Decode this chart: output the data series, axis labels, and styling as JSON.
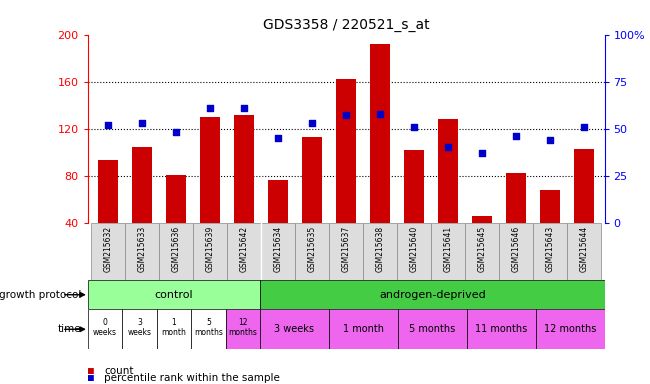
{
  "title": "GDS3358 / 220521_s_at",
  "samples": [
    "GSM215632",
    "GSM215633",
    "GSM215636",
    "GSM215639",
    "GSM215642",
    "GSM215634",
    "GSM215635",
    "GSM215637",
    "GSM215638",
    "GSM215640",
    "GSM215641",
    "GSM215645",
    "GSM215646",
    "GSM215643",
    "GSM215644"
  ],
  "bar_values": [
    93,
    104,
    81,
    130,
    132,
    76,
    113,
    162,
    192,
    102,
    128,
    46,
    82,
    68,
    103
  ],
  "dot_values": [
    52,
    53,
    48,
    61,
    61,
    45,
    53,
    57,
    58,
    51,
    40,
    37,
    46,
    44,
    51
  ],
  "ylim": [
    40,
    200
  ],
  "yticks": [
    40,
    80,
    120,
    160,
    200
  ],
  "y2ticks": [
    0,
    25,
    50,
    75,
    100
  ],
  "bar_color": "#cc0000",
  "dot_color": "#0000cc",
  "bg_color": "#ffffff",
  "control_color": "#99ff99",
  "androgen_color": "#44cc44",
  "time_ctrl_colors": [
    "#ffffff",
    "#ffffff",
    "#ffffff",
    "#ffffff",
    "#ee66ee"
  ],
  "time_and_colors": [
    "#ee66ee",
    "#ee66ee",
    "#ee66ee",
    "#ee66ee",
    "#ee66ee"
  ],
  "time_control": [
    "0\nweeks",
    "3\nweeks",
    "1\nmonth",
    "5\nmonths",
    "12\nmonths"
  ],
  "time_androgen": [
    "3 weeks",
    "1 month",
    "5 months",
    "11 months",
    "12 months"
  ],
  "growth_label": "growth protocol",
  "time_label": "time",
  "legend_count": "count",
  "legend_pct": "percentile rank within the sample",
  "n_control": 5,
  "n_androgen": 10
}
